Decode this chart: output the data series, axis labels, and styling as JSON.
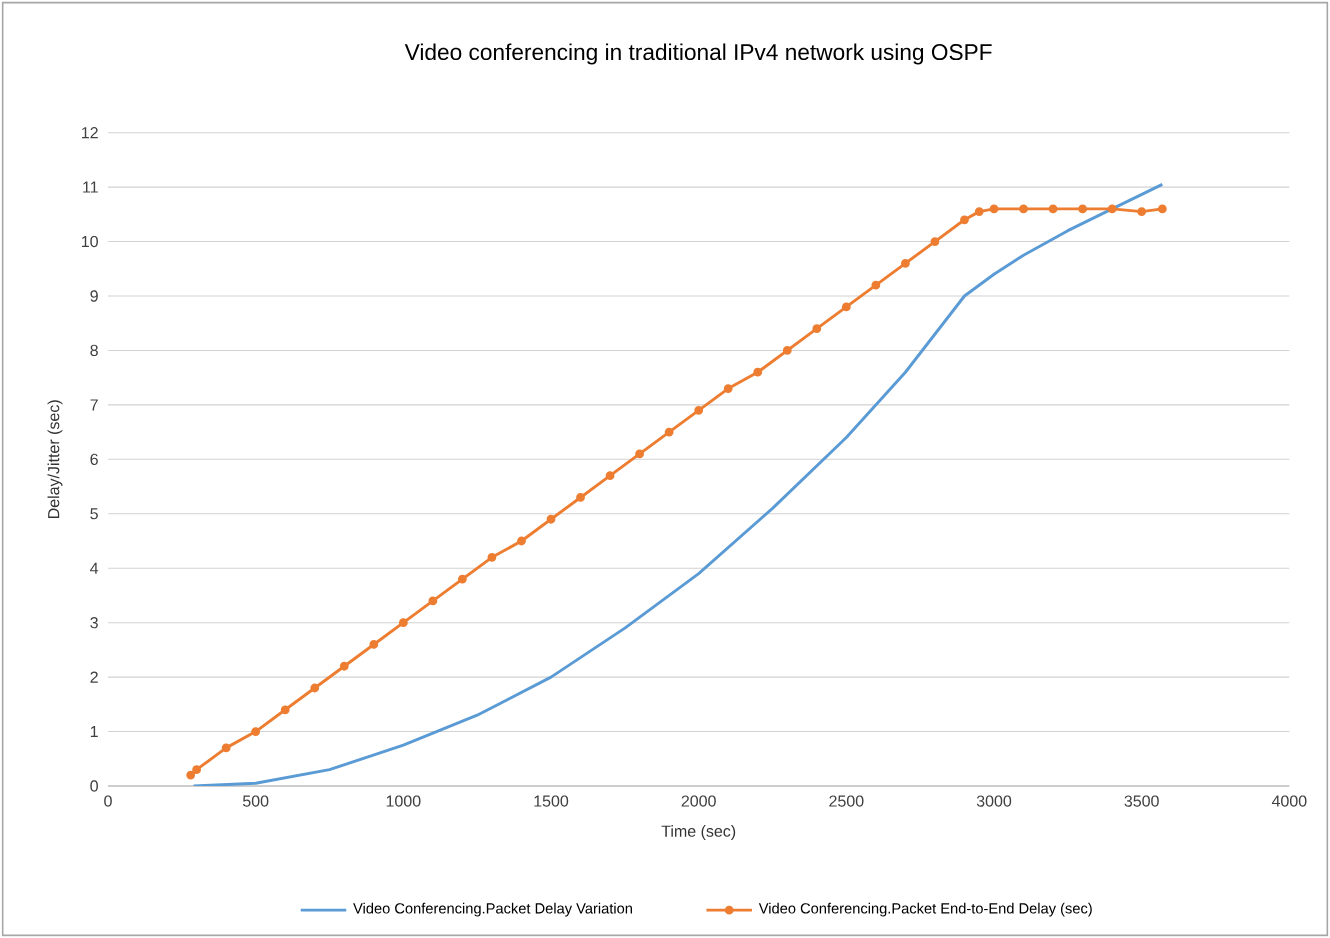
{
  "chart_data": {
    "type": "line",
    "title": "Video conferencing in traditional IPv4 network using OSPF",
    "xlabel": "Time (sec)",
    "ylabel": "Delay/Jitter (sec)",
    "xlim": [
      0,
      4000
    ],
    "xticks": [
      0,
      500,
      1000,
      1500,
      2000,
      2500,
      3000,
      3500,
      4000
    ],
    "ylim": [
      0,
      12
    ],
    "yticks": [
      0,
      1,
      2,
      3,
      4,
      5,
      6,
      7,
      8,
      9,
      10,
      11,
      12
    ],
    "grid": "y",
    "legend": "bottom",
    "series": [
      {
        "name": "Video Conferencing.Packet Delay Variation",
        "color": "#5b9bd5",
        "marker": "none",
        "x": [
          290,
          500,
          750,
          1000,
          1250,
          1500,
          1750,
          2000,
          2250,
          2500,
          2700,
          2900,
          3000,
          3100,
          3250,
          3400,
          3570
        ],
        "values": [
          0,
          0.05,
          0.3,
          0.75,
          1.3,
          2.0,
          2.9,
          3.9,
          5.1,
          6.4,
          7.6,
          9.0,
          9.4,
          9.75,
          10.2,
          10.6,
          11.05
        ]
      },
      {
        "name": "Video Conferencing.Packet End-to-End Delay (sec)",
        "color": "#ed7d31",
        "marker": "circle",
        "x": [
          280,
          300,
          400,
          500,
          600,
          700,
          800,
          900,
          1000,
          1100,
          1200,
          1300,
          1400,
          1500,
          1600,
          1700,
          1800,
          1900,
          2000,
          2100,
          2200,
          2300,
          2400,
          2500,
          2600,
          2700,
          2800,
          2900,
          2950,
          3000,
          3100,
          3200,
          3300,
          3400,
          3500,
          3570
        ],
        "values": [
          0.2,
          0.3,
          0.7,
          1.0,
          1.4,
          1.8,
          2.2,
          2.6,
          3.0,
          3.4,
          3.8,
          4.2,
          4.5,
          4.9,
          5.3,
          5.7,
          6.1,
          6.5,
          6.9,
          7.3,
          7.6,
          8.0,
          8.4,
          8.8,
          9.2,
          9.6,
          10.0,
          10.4,
          10.55,
          10.6,
          10.6,
          10.6,
          10.6,
          10.6,
          10.55,
          10.6
        ]
      }
    ]
  }
}
